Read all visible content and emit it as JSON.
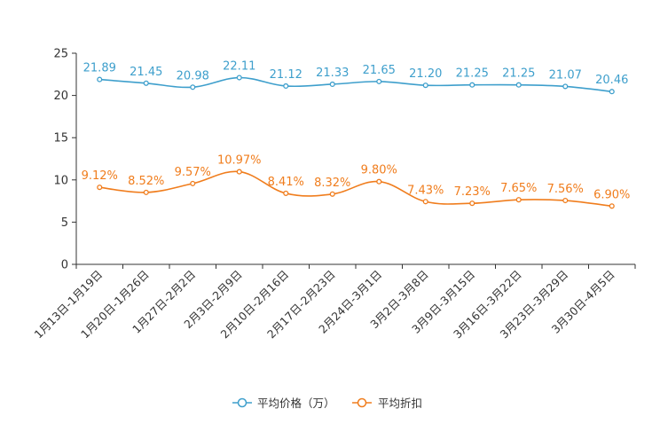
{
  "chart_data": {
    "type": "line",
    "categories": [
      "1月13日-1月19日",
      "1月20日-1月26日",
      "1月27日-2月2日",
      "2月3日-2月9日",
      "2月10日-2月16日",
      "2月17日-2月23日",
      "2月24日-3月1日",
      "3月2日-3月8日",
      "3月9日-3月15日",
      "3月16日-3月22日",
      "3月23日-3月29日",
      "3月30日-4月5日"
    ],
    "series": [
      {
        "name": "平均价格（万）",
        "color": "#3e9fcc",
        "values": [
          21.89,
          21.45,
          20.98,
          22.11,
          21.12,
          21.33,
          21.65,
          21.2,
          21.25,
          21.25,
          21.07,
          20.46
        ],
        "labels": [
          "21.89",
          "21.45",
          "20.98",
          "22.11",
          "21.12",
          "21.33",
          "21.65",
          "21.20",
          "21.25",
          "21.25",
          "21.07",
          "20.46"
        ]
      },
      {
        "name": "平均折扣",
        "color": "#f07d1d",
        "values": [
          9.12,
          8.52,
          9.57,
          10.97,
          8.41,
          8.32,
          9.8,
          7.43,
          7.23,
          7.65,
          7.56,
          6.9
        ],
        "labels": [
          "9.12%",
          "8.52%",
          "9.57%",
          "10.97%",
          "8.41%",
          "8.32%",
          "9.80%",
          "7.43%",
          "7.23%",
          "7.65%",
          "7.56%",
          "6.90%"
        ]
      }
    ],
    "yticks": [
      "0",
      "5",
      "10",
      "15",
      "20",
      "25"
    ],
    "ylim": [
      0,
      25
    ],
    "title": "",
    "xlabel": "",
    "ylabel": "",
    "legend": "bottom-center"
  }
}
